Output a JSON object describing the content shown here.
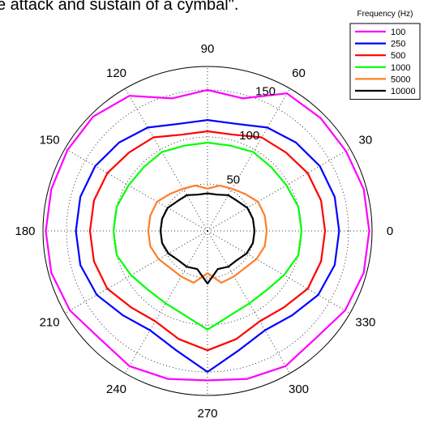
{
  "headline": "e attack and sustain of a cymbal\".",
  "chart_data": {
    "type": "polar-line",
    "angle_ticks": [
      "0",
      "30",
      "60",
      "90",
      "120",
      "150",
      "180",
      "210",
      "240",
      "270",
      "300",
      "330"
    ],
    "radial_ticks": [
      "50",
      "100",
      "150"
    ],
    "rlim": [
      0,
      175
    ],
    "grid": true,
    "legend": {
      "title": "Frequency (Hz)",
      "placement": "top-right"
    },
    "angles": [
      0,
      15,
      30,
      45,
      60,
      75,
      90,
      105,
      120,
      135,
      150,
      165,
      180,
      195,
      210,
      225,
      240,
      255,
      270,
      285,
      300,
      315,
      330,
      345
    ],
    "series": [
      {
        "name": "100",
        "color": "#ff00ff",
        "values": [
          172,
          172,
          170,
          170,
          169,
          146,
          150,
          146,
          166,
          172,
          172,
          172,
          172,
          172,
          169,
          162,
          166,
          163,
          159,
          163,
          166,
          162,
          169,
          172
        ]
      },
      {
        "name": "250",
        "color": "#0000ff",
        "values": [
          140,
          140,
          138,
          133,
          127,
          118,
          118,
          118,
          127,
          133,
          138,
          140,
          140,
          140,
          136,
          127,
          122,
          131,
          150,
          131,
          122,
          127,
          136,
          140
        ]
      },
      {
        "name": "500",
        "color": "#ff0000",
        "values": [
          125,
          125,
          123,
          118,
          115,
          106,
          106,
          106,
          115,
          118,
          123,
          125,
          125,
          125,
          123,
          115,
          111,
          119,
          127,
          119,
          111,
          115,
          123,
          125
        ]
      },
      {
        "name": "1000",
        "color": "#00ff00",
        "values": [
          100,
          100,
          97,
          96,
          97,
          94,
          94,
          94,
          97,
          96,
          97,
          100,
          100,
          100,
          94,
          89,
          89,
          93,
          105,
          93,
          89,
          89,
          94,
          100
        ]
      },
      {
        "name": "5000",
        "color": "#ff7f27",
        "values": [
          63,
          63,
          62,
          56,
          52,
          50,
          45,
          50,
          52,
          56,
          62,
          63,
          63,
          63,
          60,
          56,
          56,
          57,
          45,
          57,
          56,
          56,
          60,
          63
        ]
      },
      {
        "name": "10000",
        "color": "#000000",
        "values": [
          50,
          50,
          49,
          45,
          44,
          40,
          40,
          40,
          44,
          45,
          49,
          50,
          50,
          50,
          48,
          44,
          44,
          42,
          56,
          42,
          44,
          44,
          48,
          50
        ]
      }
    ]
  }
}
